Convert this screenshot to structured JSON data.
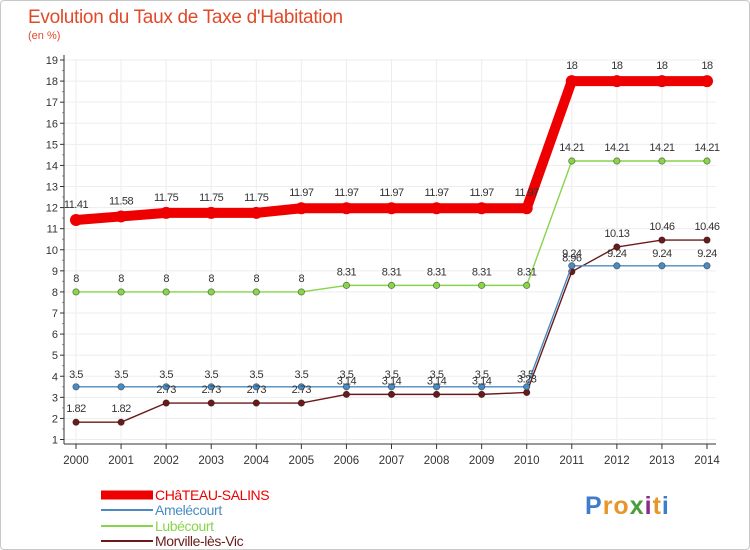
{
  "colors": {
    "title": "#e04a2a",
    "grid": "#ededed",
    "axis": "#333333"
  },
  "chart_data": {
    "type": "line",
    "title": "Evolution du Taux de Taxe d'Habitation",
    "subtitle": "(en %)",
    "xlabel": "",
    "ylabel": "",
    "x": [
      "2000",
      "2001",
      "2002",
      "2003",
      "2004",
      "2005",
      "2006",
      "2007",
      "2008",
      "2009",
      "2010",
      "2011",
      "2012",
      "2013",
      "2014"
    ],
    "ylim": [
      1,
      19
    ],
    "yticks": [
      "1",
      "2",
      "3",
      "4",
      "5",
      "6",
      "7",
      "8",
      "9",
      "10",
      "11",
      "12",
      "13",
      "14",
      "15",
      "16",
      "17",
      "18",
      "19"
    ],
    "grid": true,
    "legend_position": "bottom-left",
    "series": [
      {
        "name": "CHâTEAU-SALINS",
        "color": "#ee0000",
        "values": [
          11.41,
          11.58,
          11.75,
          11.75,
          11.75,
          11.97,
          11.97,
          11.97,
          11.97,
          11.97,
          11.97,
          18,
          18,
          18,
          18
        ],
        "labels": [
          "11.41",
          "11.58",
          "11.75",
          "11.75",
          "11.75",
          "11.97",
          "11.97",
          "11.97",
          "11.97",
          "11.97",
          "11.97",
          "18",
          "18",
          "18",
          "18"
        ]
      },
      {
        "name": "Amelécourt",
        "color": "#4a8cc2",
        "values": [
          3.5,
          3.5,
          3.5,
          3.5,
          3.5,
          3.5,
          3.5,
          3.5,
          3.5,
          3.5,
          3.5,
          9.24,
          9.24,
          9.24,
          9.24
        ],
        "labels": [
          "3.5",
          "3.5",
          "3.5",
          "3.5",
          "3.5",
          "3.5",
          "3.5",
          "3.5",
          "3.5",
          "3.5",
          "3.5",
          "9.24",
          "9.24",
          "9.24",
          "9.24"
        ]
      },
      {
        "name": "Lubécourt",
        "color": "#88d44a",
        "values": [
          8,
          8,
          8,
          8,
          8,
          8,
          8.31,
          8.31,
          8.31,
          8.31,
          8.31,
          14.21,
          14.21,
          14.21,
          14.21
        ],
        "labels": [
          "8",
          "8",
          "8",
          "8",
          "8",
          "8",
          "8.31",
          "8.31",
          "8.31",
          "8.31",
          "8.31",
          "14.21",
          "14.21",
          "14.21",
          "14.21"
        ]
      },
      {
        "name": "Morville-lès-Vic",
        "color": "#6b1a1a",
        "values": [
          1.82,
          1.82,
          2.73,
          2.73,
          2.73,
          2.73,
          3.14,
          3.14,
          3.14,
          3.14,
          3.23,
          8.96,
          10.13,
          10.46,
          10.46
        ],
        "labels": [
          "1.82",
          "1.82",
          "2.73",
          "2.73",
          "2.73",
          "2.73",
          "3.14",
          "3.14",
          "3.14",
          "3.14",
          "3.23",
          "8.96",
          "10.13",
          "10.46",
          "10.46"
        ]
      }
    ]
  },
  "legend": {
    "items": [
      {
        "label": "CHâTEAU-SALINS",
        "color": "#ee0000"
      },
      {
        "label": "Amelécourt",
        "color": "#4a8cc2"
      },
      {
        "label": "Lubécourt",
        "color": "#88d44a"
      },
      {
        "label": "Morville-lès-Vic",
        "color": "#6b1a1a"
      }
    ]
  },
  "logo": {
    "text": "Proxiti",
    "letters": [
      "P",
      "r",
      "o",
      "x",
      "i",
      "t",
      "i"
    ],
    "letter_colors": [
      "#3f7cc9",
      "#e8962a",
      "#e8962a",
      "#4a9e3a",
      "#8a2a8a",
      "#e8962a",
      "#3f7cc9"
    ]
  }
}
